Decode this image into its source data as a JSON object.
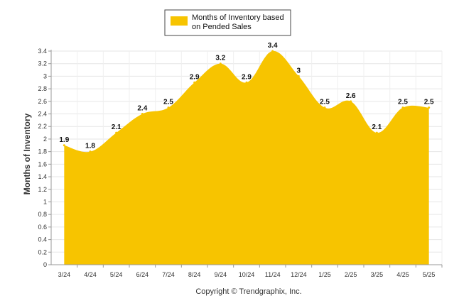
{
  "chart_data": {
    "type": "area",
    "categories": [
      "3/24",
      "4/24",
      "5/24",
      "6/24",
      "7/24",
      "8/24",
      "9/24",
      "10/24",
      "11/24",
      "12/24",
      "1/25",
      "2/25",
      "3/25",
      "4/25",
      "5/25"
    ],
    "series": [
      {
        "name": "Months of Inventory based on Pended Sales",
        "values": [
          1.9,
          1.8,
          2.1,
          2.4,
          2.5,
          2.9,
          3.2,
          2.9,
          3.4,
          3,
          2.5,
          2.6,
          2.1,
          2.5,
          2.5
        ]
      }
    ],
    "data_labels": [
      "1.9",
      "1.8",
      "2.1",
      "2.4",
      "2.5",
      "2.9",
      "3.2",
      "2.9",
      "3.4",
      "3",
      "2.5",
      "2.6",
      "2.1",
      "2.5",
      "2.5"
    ],
    "ylabel": "Months of Inventory",
    "ylim": [
      0,
      3.4
    ],
    "yticks": [
      "0",
      "0.2",
      "0.4",
      "0.6",
      "0.8",
      "1",
      "1.2",
      "1.4",
      "1.6",
      "1.8",
      "2",
      "2.2",
      "2.4",
      "2.6",
      "2.8",
      "3",
      "3.2",
      "3.4"
    ],
    "legend_lines": [
      "Months of Inventory based",
      "on Pended Sales"
    ],
    "legend_position": "top-center",
    "credit": "Copyright © Trendgraphix, Inc.",
    "grid": true,
    "colors": {
      "area": "#F7C400",
      "grid": "#e6e6e6",
      "axis": "#999999"
    }
  }
}
